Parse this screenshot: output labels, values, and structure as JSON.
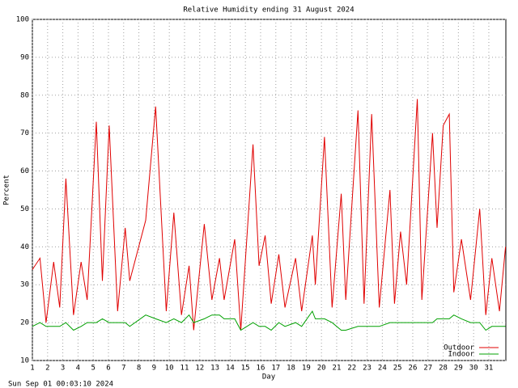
{
  "chart_data": {
    "type": "line",
    "title": "Relative Humidity ending 31 August 2024",
    "xlabel": "Day",
    "ylabel": "Percent",
    "footer": "Sun Sep 01 00:03:10 2024",
    "x": [
      1,
      1.5,
      1.9,
      2.4,
      2.8,
      3.2,
      3.7,
      4.2,
      4.6,
      5.2,
      5.6,
      6.05,
      6.6,
      7.1,
      7.4,
      8.45,
      9.1,
      9.8,
      10.3,
      10.8,
      11.3,
      11.6,
      12.3,
      12.8,
      13.3,
      13.6,
      14.3,
      14.7,
      15.5,
      15.9,
      16.3,
      16.7,
      17.2,
      17.6,
      18.3,
      18.7,
      19.4,
      19.6,
      20.2,
      20.7,
      21.3,
      21.6,
      22.4,
      22.8,
      23.3,
      23.8,
      24.5,
      24.8,
      25.2,
      25.6,
      26.3,
      26.6,
      27.3,
      27.6,
      28,
      28.4,
      28.7,
      29.2,
      29.8,
      30.4,
      30.8,
      31.2,
      31.7,
      32.1
    ],
    "series": [
      {
        "name": "Outdoor",
        "color": "#e00000",
        "values": [
          34,
          37,
          20,
          36,
          24,
          58,
          22,
          36,
          26,
          73,
          31,
          72,
          23,
          45,
          31,
          47,
          77,
          23,
          49,
          22,
          35,
          18,
          46,
          26,
          37,
          26,
          42,
          18,
          67,
          35,
          43,
          25,
          38,
          24,
          37,
          23,
          43,
          30,
          69,
          24,
          54,
          26,
          76,
          25,
          75,
          24,
          55,
          25,
          44,
          30,
          79,
          26,
          70,
          45,
          72,
          75,
          28,
          42,
          26,
          50,
          22,
          37,
          23,
          40
        ]
      },
      {
        "name": "Indoor",
        "color": "#00a000",
        "values": [
          19,
          20,
          19,
          19,
          19,
          20,
          18,
          19,
          20,
          20,
          21,
          20,
          20,
          20,
          19,
          22,
          21,
          20,
          21,
          20,
          22,
          20,
          21,
          22,
          22,
          21,
          21,
          18,
          20,
          19,
          19,
          18,
          20,
          19,
          20,
          19,
          23,
          21,
          21,
          20,
          18,
          18,
          19,
          19,
          19,
          19,
          20,
          20,
          20,
          20,
          20,
          20,
          20,
          21,
          21,
          21,
          22,
          21,
          20,
          20,
          18,
          19,
          19,
          19
        ]
      }
    ],
    "xlim": [
      1,
      32.12
    ],
    "xticks": [
      1,
      2,
      3,
      4,
      5,
      6,
      7,
      8,
      9,
      10,
      11,
      12,
      13,
      14,
      15,
      16,
      17,
      18,
      19,
      20,
      21,
      22,
      23,
      24,
      25,
      26,
      27,
      28,
      29,
      30,
      31
    ],
    "ylim": [
      10,
      100
    ],
    "yticks": [
      10,
      20,
      30,
      40,
      50,
      60,
      70,
      80,
      90,
      100
    ],
    "grid": true,
    "legend": "lower right"
  }
}
